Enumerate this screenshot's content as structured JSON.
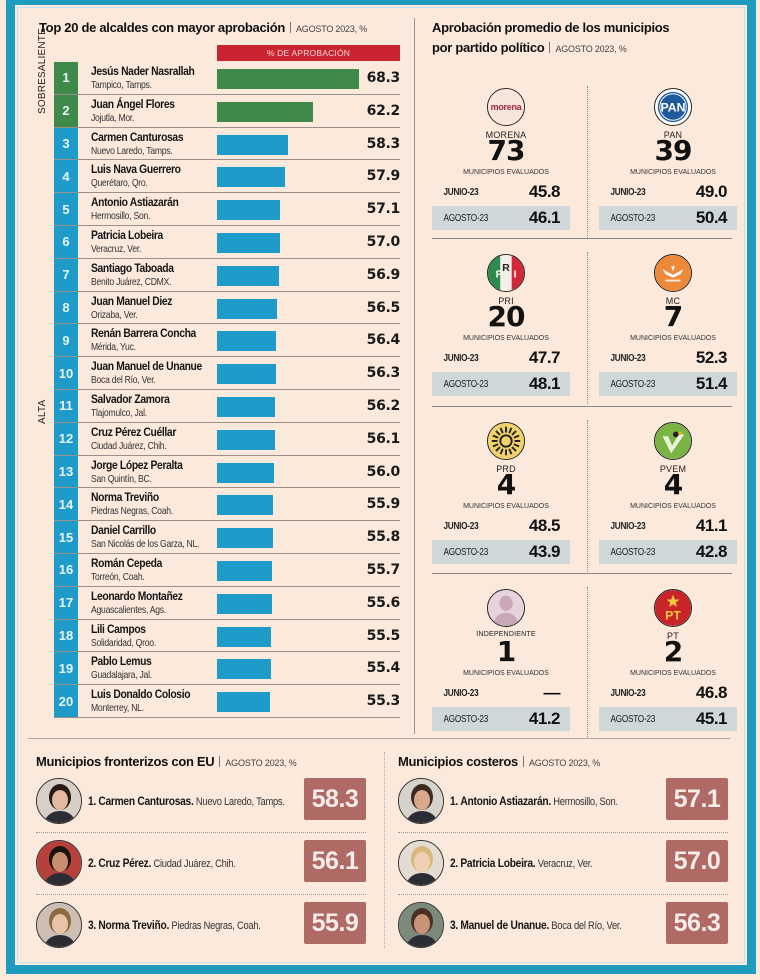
{
  "colors": {
    "frame": "#1f9bbd",
    "background": "#fbe9dc",
    "sobresaliente": "#3f8a4a",
    "alta": "#1f9bc9",
    "header_red": "#c9242f",
    "score_box": "#b06a66",
    "agosto_row": "#cfd7d8"
  },
  "chart_data": [
    {
      "type": "bar",
      "orientation": "horizontal",
      "title": "Top 20 de alcaldes con mayor aprobación",
      "subtitle": "AGOSTO 2023, %",
      "column_header": "% DE APROBACIÓN",
      "groups": [
        {
          "label": "SOBRESALIENTE",
          "ranks": [
            1,
            2
          ]
        },
        {
          "label": "ALTA",
          "ranks": [
            3,
            20
          ]
        }
      ],
      "xlim": [
        0,
        68.3
      ],
      "rows": [
        {
          "rank": "1",
          "name": "Jesús Nader Nasrallah",
          "location": "Tampico, Tamps.",
          "value": 68.3,
          "group": "SOBRESALIENTE"
        },
        {
          "rank": "2",
          "name": "Juan Ángel Flores",
          "location": "Jojutla, Mor.",
          "value": 62.2,
          "group": "SOBRESALIENTE"
        },
        {
          "rank": "3",
          "name": "Carmen Canturosas",
          "location": "Nuevo Laredo, Tamps.",
          "value": 58.3,
          "group": "ALTA"
        },
        {
          "rank": "4",
          "name": "Luis Nava Guerrero",
          "location": "Querétaro, Qro.",
          "value": 57.9,
          "group": "ALTA"
        },
        {
          "rank": "5",
          "name": "Antonio Astiazarán",
          "location": "Hermosillo, Son.",
          "value": 57.1,
          "group": "ALTA"
        },
        {
          "rank": "6",
          "name": "Patricia Lobeira",
          "location": "Veracruz, Ver.",
          "value": 57.0,
          "group": "ALTA"
        },
        {
          "rank": "7",
          "name": "Santiago Taboada",
          "location": "Benito Juárez, CDMX.",
          "value": 56.9,
          "group": "ALTA"
        },
        {
          "rank": "8",
          "name": "Juan Manuel Diez",
          "location": "Orizaba, Ver.",
          "value": 56.5,
          "group": "ALTA"
        },
        {
          "rank": "9",
          "name": "Renán Barrera Concha",
          "location": "Mérida, Yuc.",
          "value": 56.4,
          "group": "ALTA"
        },
        {
          "rank": "10",
          "name": "Juan Manuel de Unanue",
          "location": "Boca del Río, Ver.",
          "value": 56.3,
          "group": "ALTA"
        },
        {
          "rank": "11",
          "name": "Salvador Zamora",
          "location": "Tlajomulco, Jal.",
          "value": 56.2,
          "group": "ALTA"
        },
        {
          "rank": "12",
          "name": "Cruz Pérez Cuéllar",
          "location": "Ciudad Juárez, Chih.",
          "value": 56.1,
          "group": "ALTA"
        },
        {
          "rank": "13",
          "name": "Jorge López Peralta",
          "location": "San Quintín, BC.",
          "value": 56.0,
          "group": "ALTA"
        },
        {
          "rank": "14",
          "name": "Norma Treviño",
          "location": "Piedras Negras, Coah.",
          "value": 55.9,
          "group": "ALTA"
        },
        {
          "rank": "15",
          "name": "Daniel Carrillo",
          "location": "San Nicolás de los Garza, NL.",
          "value": 55.8,
          "group": "ALTA"
        },
        {
          "rank": "16",
          "name": "Román Cepeda",
          "location": "Torreón, Coah.",
          "value": 55.7,
          "group": "ALTA"
        },
        {
          "rank": "17",
          "name": "Leonardo Montañez",
          "location": "Aguascalientes, Ags.",
          "value": 55.6,
          "group": "ALTA"
        },
        {
          "rank": "18",
          "name": "Lili Campos",
          "location": "Solidaridad, Qroo.",
          "value": 55.5,
          "group": "ALTA"
        },
        {
          "rank": "19",
          "name": "Pablo Lemus",
          "location": "Guadalajara, Jal.",
          "value": 55.4,
          "group": "ALTA"
        },
        {
          "rank": "20",
          "name": "Luis Donaldo Colosio",
          "location": "Monterrey, NL.",
          "value": 55.3,
          "group": "ALTA"
        }
      ]
    },
    {
      "type": "table",
      "title": "Aprobación promedio de los municipios por partido político",
      "subtitle": "AGOSTO 2023, %",
      "count_label": "MUNICIPIOS EVALUADOS",
      "period_labels": [
        "JUNIO-23",
        "AGOSTO-23"
      ],
      "parties": [
        {
          "name": "MORENA",
          "logo": "morena-logo",
          "municipios": "73",
          "junio": "45.8",
          "agosto": "46.1"
        },
        {
          "name": "PAN",
          "logo": "pan-logo",
          "municipios": "39",
          "junio": "49.0",
          "agosto": "50.4"
        },
        {
          "name": "PRI",
          "logo": "pri-logo",
          "municipios": "20",
          "junio": "47.7",
          "agosto": "48.1"
        },
        {
          "name": "MC",
          "logo": "mc-logo",
          "municipios": "7",
          "junio": "52.3",
          "agosto": "51.4"
        },
        {
          "name": "PRD",
          "logo": "prd-logo",
          "municipios": "4",
          "junio": "48.5",
          "agosto": "43.9"
        },
        {
          "name": "PVEM",
          "logo": "pvem-logo",
          "municipios": "4",
          "junio": "41.1",
          "agosto": "42.8"
        },
        {
          "name": "INDEPENDIENTE",
          "logo": "independent-avatar",
          "municipios": "1",
          "junio": "—",
          "agosto": "41.2"
        },
        {
          "name": "PT",
          "logo": "pt-logo",
          "municipios": "2",
          "junio": "46.8",
          "agosto": "45.1"
        }
      ]
    },
    {
      "type": "table",
      "title": "Municipios fronterizos con EU",
      "subtitle": "AGOSTO 2023, %",
      "rows": [
        {
          "rank": "1.",
          "name": "Carmen Canturosas.",
          "location": "Nuevo Laredo, Tamps.",
          "value": "58.3"
        },
        {
          "rank": "2.",
          "name": "Cruz Pérez.",
          "location": "Ciudad Juárez, Chih.",
          "value": "56.1"
        },
        {
          "rank": "3.",
          "name": "Norma Treviño.",
          "location": "Piedras Negras, Coah.",
          "value": "55.9"
        }
      ]
    },
    {
      "type": "table",
      "title": "Municipios costeros",
      "subtitle": "AGOSTO 2023, %",
      "rows": [
        {
          "rank": "1.",
          "name": "Antonio Astiazarán.",
          "location": "Hermosillo, Son.",
          "value": "57.1"
        },
        {
          "rank": "2.",
          "name": "Patricia Lobeira.",
          "location": "Veracruz, Ver.",
          "value": "57.0"
        },
        {
          "rank": "3.",
          "name": "Manuel de Unanue.",
          "location": "Boca del Río, Ver.",
          "value": "56.3"
        }
      ]
    }
  ]
}
